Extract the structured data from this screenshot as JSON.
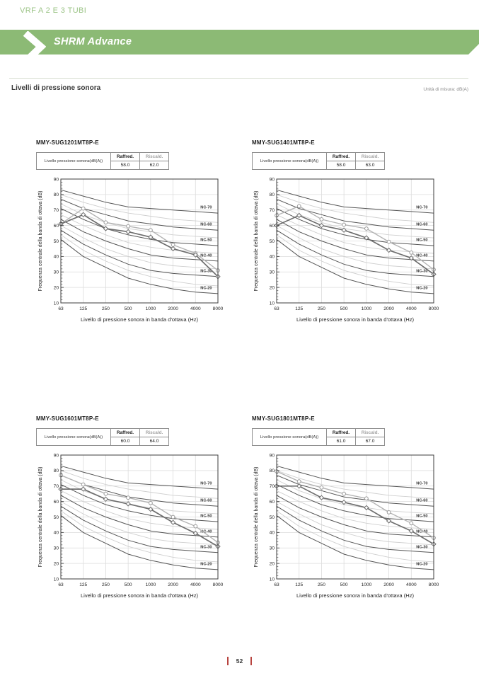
{
  "page": {
    "eyebrow": "VRF A 2 E 3 TUBI",
    "banner_title": "SHRM Advance",
    "section_title": "Livelli di pressione sonora",
    "unit_note": "Unità di misura: dB(A)",
    "page_number": "52",
    "colors": {
      "banner_green": "#8cba75",
      "eyebrow_green": "#9cc487",
      "footer_accent": "#b8443f"
    }
  },
  "table_labels": {
    "row_label": "Livello pressione sonora(dB(A))",
    "col1": "Raffred.",
    "col2": "Riscald."
  },
  "models": [
    {
      "name": "MMY-SUG1201MT8P-E",
      "raffred": "58.0",
      "riscald": "62.0"
    },
    {
      "name": "MMY-SUG1401MT8P-E",
      "raffred": "58.0",
      "riscald": "63.0"
    },
    {
      "name": "MMY-SUG1601MT8P-E",
      "raffred": "60.0",
      "riscald": "64.0"
    },
    {
      "name": "MMY-SUG1801MT8P-E",
      "raffred": "61.0",
      "riscald": "67.0"
    }
  ],
  "nc_reference_curves": {
    "labeled": [
      {
        "label": "NC-70",
        "values": [
          83,
          79,
          75,
          72,
          71,
          70,
          69,
          68
        ]
      },
      {
        "label": "NC-60",
        "values": [
          77,
          71,
          67,
          63,
          61,
          59,
          58,
          57
        ]
      },
      {
        "label": "NC-50",
        "values": [
          71,
          64,
          58,
          54,
          51,
          49,
          48,
          47
        ]
      },
      {
        "label": "NC-40",
        "values": [
          64,
          56,
          50,
          45,
          41,
          39,
          38,
          37
        ]
      },
      {
        "label": "NC-30",
        "values": [
          57,
          48,
          41,
          35,
          31,
          29,
          28,
          27
        ]
      },
      {
        "label": "NC-20",
        "values": [
          51,
          40,
          33,
          26,
          22,
          19,
          17,
          16
        ]
      }
    ],
    "unlabeled": [
      {
        "label": "NC-65",
        "values": [
          80,
          75,
          71,
          68,
          66,
          64,
          63,
          62
        ]
      },
      {
        "label": "NC-55",
        "values": [
          74,
          67,
          62,
          58,
          56,
          54,
          53,
          52
        ]
      },
      {
        "label": "NC-45",
        "values": [
          67,
          60,
          54,
          49,
          46,
          44,
          43,
          42
        ]
      },
      {
        "label": "NC-35",
        "values": [
          60,
          52,
          45,
          40,
          36,
          34,
          33,
          32
        ]
      },
      {
        "label": "NC-25",
        "values": [
          54,
          44,
          37,
          31,
          27,
          24,
          22,
          21
        ]
      }
    ]
  },
  "chart_data": [
    {
      "type": "line",
      "title": "MMY-SUG1201MT8P-E",
      "x_categories": [
        "63",
        "125",
        "250",
        "500",
        "1000",
        "2000",
        "4000",
        "8000"
      ],
      "xlabel": "Livello di pressione sonora in banda d'ottava (Hz)",
      "ylabel": "Frequenza centrale della banda di ottava (dB)",
      "ylim": [
        10,
        90
      ],
      "grid": true,
      "series": [
        {
          "name": "Raffred.",
          "color": "#6e6e6e",
          "marker": "diamond",
          "values": [
            61,
            67,
            58,
            56,
            52.5,
            45,
            41,
            27
          ]
        },
        {
          "name": "Riscald.",
          "color": "#b4b4b4",
          "marker": "circle",
          "values": [
            61,
            71,
            62,
            59.5,
            57,
            47.5,
            42,
            31
          ]
        }
      ]
    },
    {
      "type": "line",
      "title": "MMY-SUG1401MT8P-E",
      "x_categories": [
        "63",
        "125",
        "250",
        "500",
        "1000",
        "2000",
        "4000",
        "8000"
      ],
      "xlabel": "Livello di pressione sonora in banda d'ottava (Hz)",
      "ylabel": "Frequenza centrale della banda di ottava (dB)",
      "ylim": [
        10,
        90
      ],
      "grid": true,
      "series": [
        {
          "name": "Raffred.",
          "color": "#6e6e6e",
          "marker": "diamond",
          "values": [
            60,
            66.5,
            60,
            57,
            52,
            44,
            39,
            28.5
          ]
        },
        {
          "name": "Riscald.",
          "color": "#b4b4b4",
          "marker": "circle",
          "values": [
            66.5,
            72.5,
            64,
            60.5,
            58,
            49.5,
            42.5,
            31.5
          ]
        }
      ]
    },
    {
      "type": "line",
      "title": "MMY-SUG1601MT8P-E",
      "x_categories": [
        "63",
        "125",
        "250",
        "500",
        "1000",
        "2000",
        "4000",
        "8000"
      ],
      "xlabel": "Livello di pressione sonora in banda d'ottava (Hz)",
      "ylabel": "Frequenza centrale della banda di ottava (dB)",
      "ylim": [
        10,
        90
      ],
      "grid": true,
      "series": [
        {
          "name": "Raffred.",
          "color": "#6e6e6e",
          "marker": "diamond",
          "values": [
            68,
            68,
            61.5,
            58.5,
            55,
            46.5,
            39.5,
            31
          ]
        },
        {
          "name": "Riscald.",
          "color": "#b4b4b4",
          "marker": "circle",
          "values": [
            77,
            71,
            65,
            62.5,
            59,
            50,
            44,
            33.5
          ]
        }
      ]
    },
    {
      "type": "line",
      "title": "MMY-SUG1801MT8P-E",
      "x_categories": [
        "63",
        "125",
        "250",
        "500",
        "1000",
        "2000",
        "4000",
        "8000"
      ],
      "xlabel": "Livello di pressione sonora in banda d'ottava (Hz)",
      "ylabel": "Frequenza centrale della banda di ottava (dB)",
      "ylim": [
        10,
        90
      ],
      "grid": true,
      "series": [
        {
          "name": "Raffred.",
          "color": "#6e6e6e",
          "marker": "diamond",
          "values": [
            70,
            70,
            62.5,
            59.5,
            56,
            47.5,
            41,
            32.5
          ]
        },
        {
          "name": "Riscald.",
          "color": "#b4b4b4",
          "marker": "circle",
          "values": [
            79.5,
            73,
            69,
            65,
            62,
            53,
            46,
            36.5
          ]
        }
      ]
    }
  ]
}
